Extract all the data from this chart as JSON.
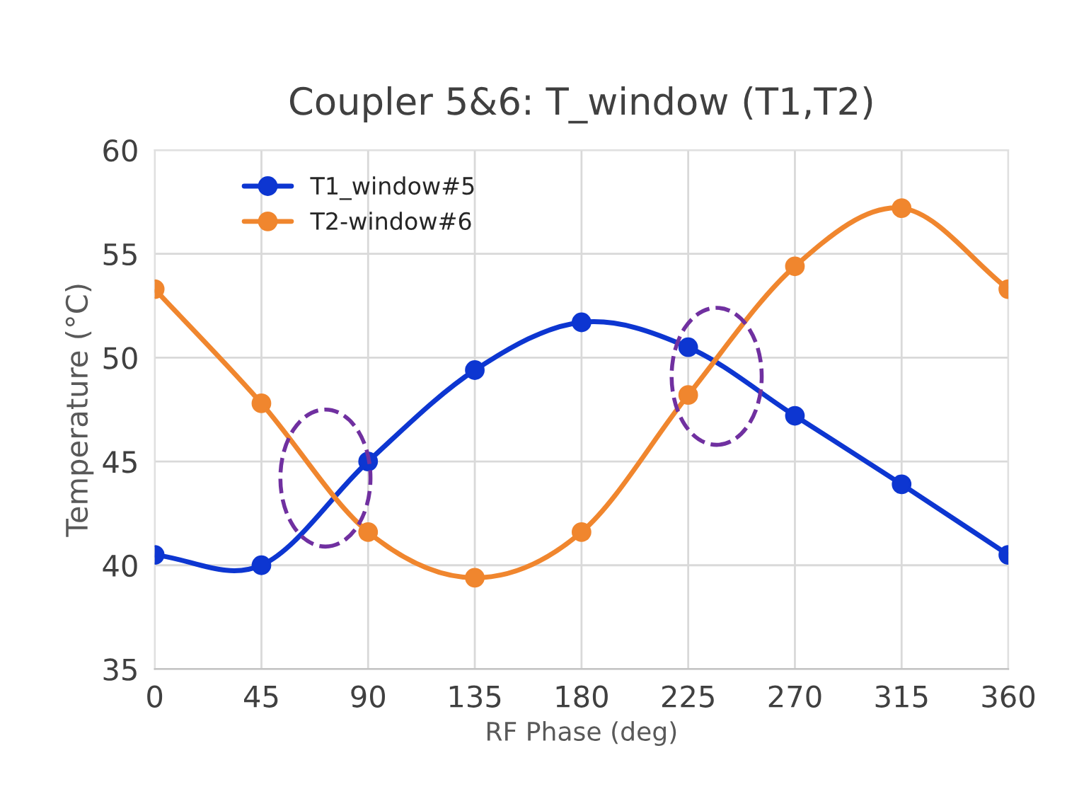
{
  "chart_data": {
    "type": "line",
    "title": "Coupler 5&6: T_window (T1,T2)",
    "xlabel": "RF Phase (deg)",
    "ylabel": "Temperature (°C)",
    "x": [
      0,
      45,
      90,
      135,
      180,
      225,
      270,
      315,
      360
    ],
    "series": [
      {
        "name": "T1_window#5",
        "color": "#0d36d1",
        "values": [
          40.5,
          40.0,
          45.0,
          49.4,
          51.7,
          50.5,
          47.2,
          43.9,
          40.5
        ]
      },
      {
        "name": "T2-window#6",
        "color": "#f0862e",
        "values": [
          53.3,
          47.8,
          41.6,
          39.4,
          41.6,
          48.2,
          54.4,
          57.2,
          53.3
        ]
      }
    ],
    "xlim": [
      0,
      360
    ],
    "xticks": [
      0,
      45,
      90,
      135,
      180,
      225,
      270,
      315,
      360
    ],
    "ylim": [
      35,
      60
    ],
    "yticks": [
      35,
      40,
      45,
      50,
      55,
      60
    ],
    "grid": true,
    "legend": "top left",
    "marker": "circle",
    "line_style": "solid"
  }
}
